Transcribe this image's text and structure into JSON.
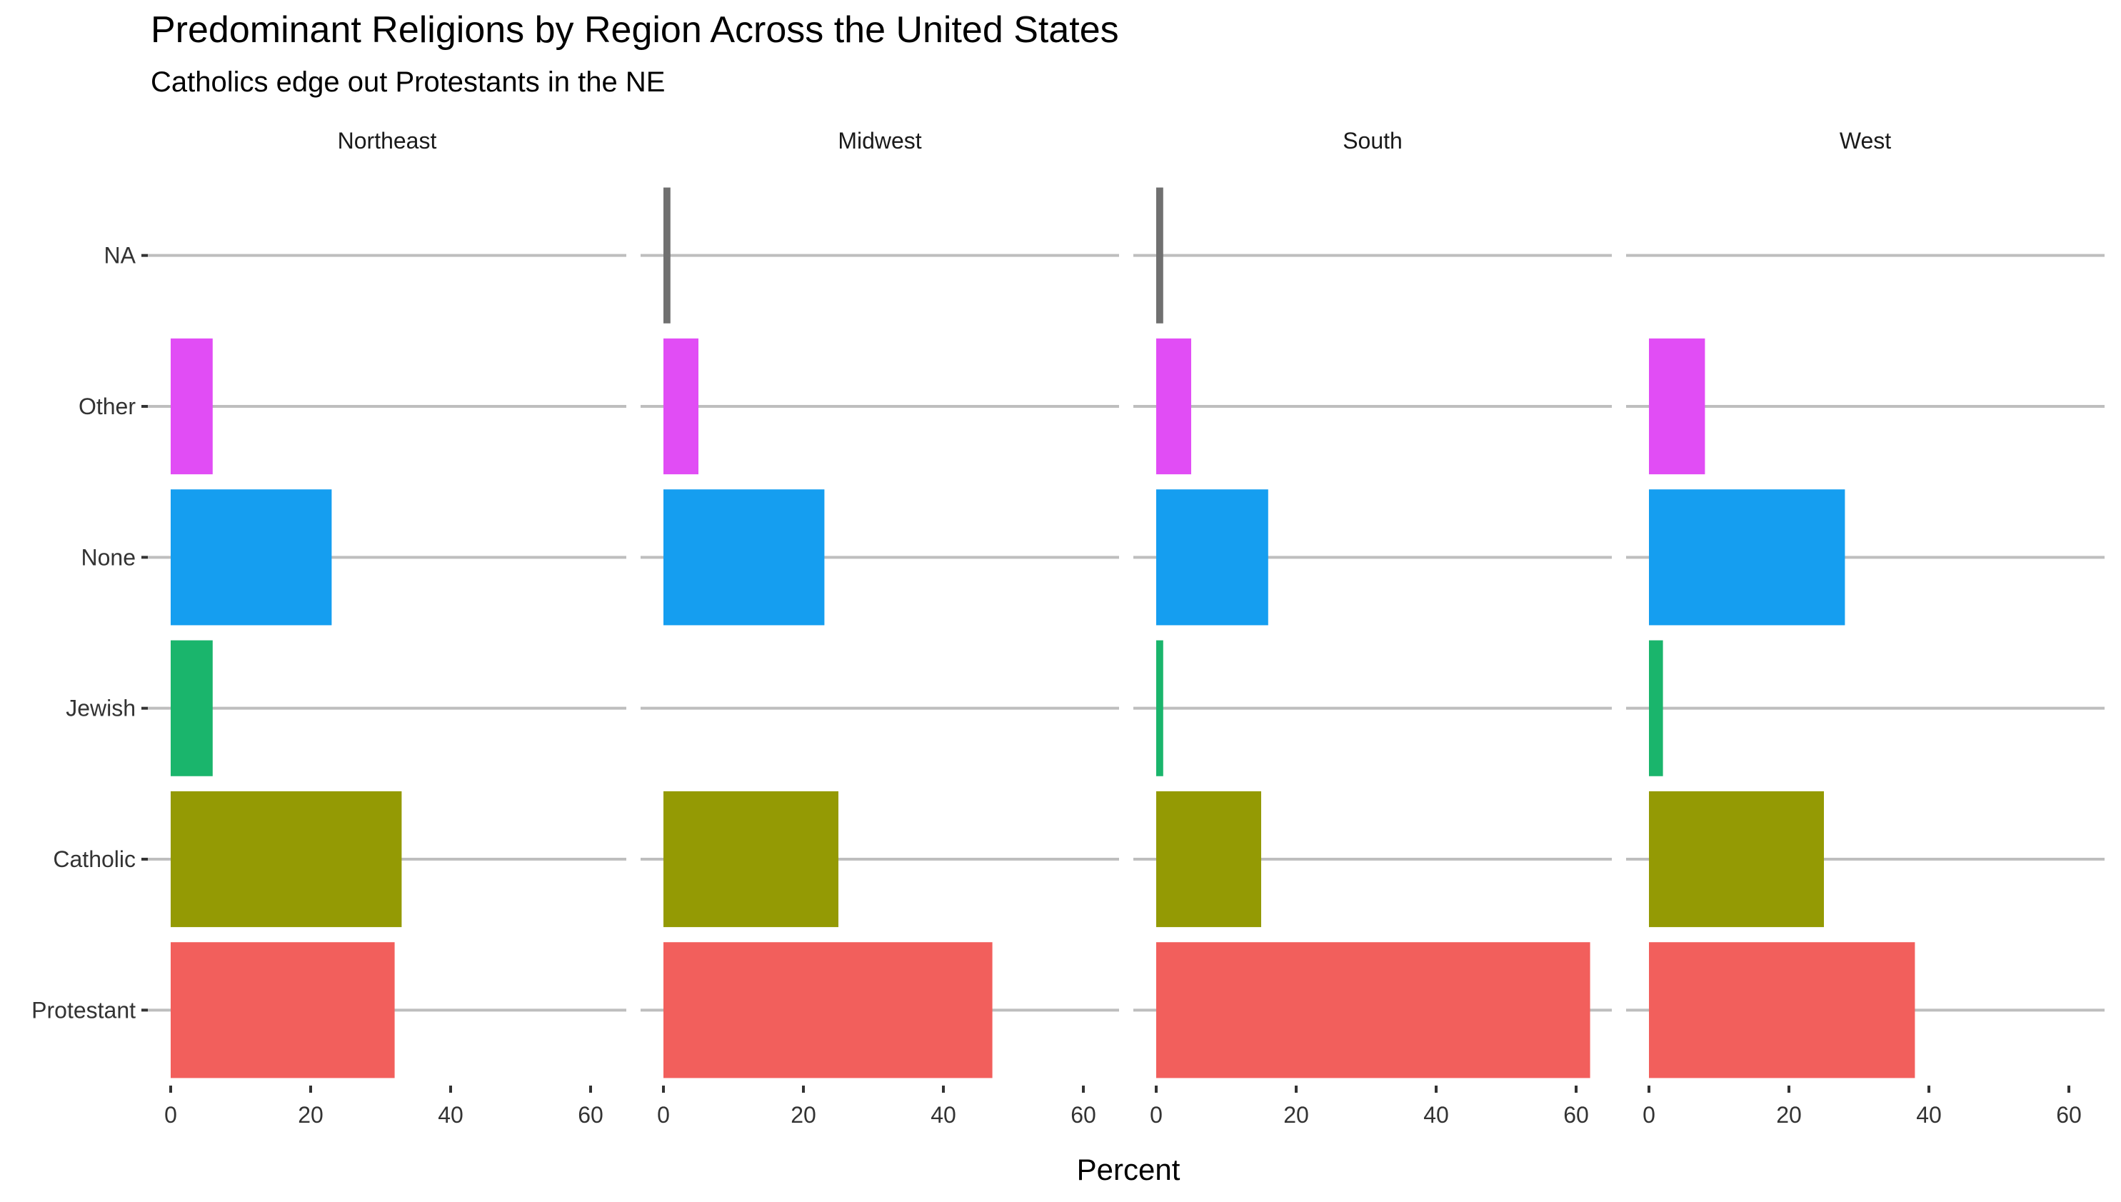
{
  "chart_data": {
    "type": "bar",
    "orientation": "horizontal",
    "title": "Predominant Religions by Region Across the United States",
    "subtitle": "Catholics edge out Protestants in the NE",
    "xlabel": "Percent",
    "ylabel": "",
    "xlim": [
      0,
      65
    ],
    "x_ticks": [
      0,
      20,
      40,
      60
    ],
    "x_tick_labels": [
      "0",
      "20",
      "40",
      "60"
    ],
    "categories": [
      "NA",
      "Other",
      "None",
      "Jewish",
      "Catholic",
      "Protestant"
    ],
    "category_colors": {
      "Protestant": "#F25F5C",
      "Catholic": "#949A04",
      "Jewish": "#1AB56C",
      "None": "#159EF0",
      "Other": "#E14DF5",
      "NA": "#707070"
    },
    "grid": "horizontal major lines only",
    "legend": "none",
    "panels": [
      {
        "name": "Northeast",
        "values": {
          "Protestant": 32,
          "Catholic": 33,
          "Jewish": 6,
          "None": 23,
          "Other": 6,
          "NA": 0
        }
      },
      {
        "name": "Midwest",
        "values": {
          "Protestant": 47,
          "Catholic": 25,
          "Jewish": 0,
          "None": 23,
          "Other": 5,
          "NA": 1
        }
      },
      {
        "name": "South",
        "values": {
          "Protestant": 62,
          "Catholic": 15,
          "Jewish": 1,
          "None": 16,
          "Other": 5,
          "NA": 1
        }
      },
      {
        "name": "West",
        "values": {
          "Protestant": 38,
          "Catholic": 25,
          "Jewish": 2,
          "None": 28,
          "Other": 8,
          "NA": 0
        }
      }
    ]
  }
}
